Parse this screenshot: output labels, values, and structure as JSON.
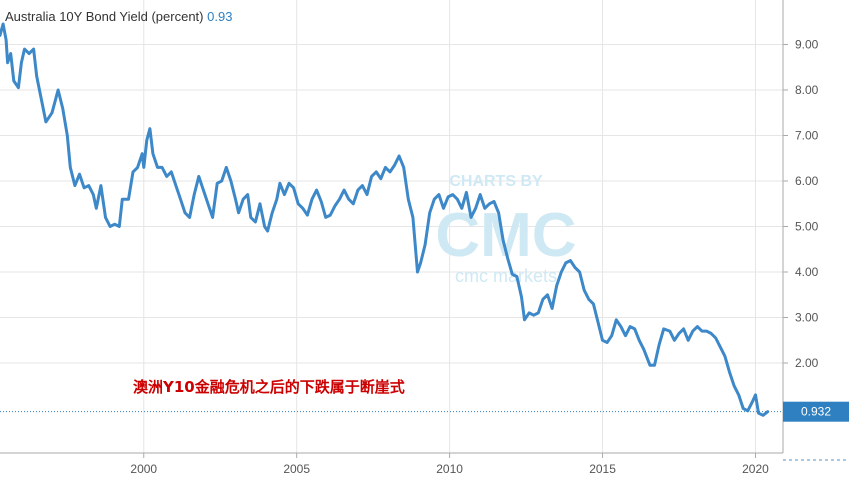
{
  "header": {
    "title": "Australia 10Y Bond Yield (percent)",
    "current_value": "0.93"
  },
  "annotation": "澳洲Y10金融危机之后的下跌属于断崖式",
  "watermark": {
    "top": "CHARTS BY",
    "logo": "CMC",
    "bottom": "cmc markets"
  },
  "last_value_badge": "0.932",
  "colors": {
    "line": "#3d88c8",
    "badge": "#2f80c0",
    "grid": "#e6e6e6",
    "axis": "#aaaaaa",
    "annotation": "#cc0000",
    "watermark": "#cfe9f4"
  },
  "chart_data": {
    "type": "line",
    "title": "Australia 10Y Bond Yield (percent)",
    "xlabel": "",
    "ylabel": "",
    "xlim": [
      1995.3,
      2020.9
    ],
    "ylim": [
      0,
      10
    ],
    "y_ticks": [
      2,
      3,
      4,
      5,
      6,
      7,
      8,
      9
    ],
    "y_tick_labels": [
      "2.00",
      "3.00",
      "4.00",
      "5.00",
      "6.00",
      "7.00",
      "8.00",
      "9.00"
    ],
    "x_ticks": [
      2000,
      2005,
      2010,
      2015,
      2020
    ],
    "x_tick_labels": [
      "2000",
      "2005",
      "2010",
      "2015",
      "2020"
    ],
    "grid": true,
    "legend": "none",
    "series": [
      {
        "values": [
          [
            1995.3,
            9.2
          ],
          [
            1995.4,
            9.45
          ],
          [
            1995.5,
            9.1
          ],
          [
            1995.55,
            8.6
          ],
          [
            1995.65,
            8.8
          ],
          [
            1995.75,
            8.2
          ],
          [
            1995.9,
            8.05
          ],
          [
            1996.0,
            8.6
          ],
          [
            1996.1,
            8.9
          ],
          [
            1996.25,
            8.8
          ],
          [
            1996.4,
            8.9
          ],
          [
            1996.5,
            8.3
          ],
          [
            1996.65,
            7.8
          ],
          [
            1996.8,
            7.3
          ],
          [
            1997.0,
            7.5
          ],
          [
            1997.2,
            8.0
          ],
          [
            1997.35,
            7.6
          ],
          [
            1997.5,
            7.0
          ],
          [
            1997.6,
            6.3
          ],
          [
            1997.75,
            5.9
          ],
          [
            1997.9,
            6.15
          ],
          [
            1998.05,
            5.85
          ],
          [
            1998.2,
            5.9
          ],
          [
            1998.35,
            5.7
          ],
          [
            1998.45,
            5.4
          ],
          [
            1998.6,
            5.9
          ],
          [
            1998.75,
            5.2
          ],
          [
            1998.9,
            5.0
          ],
          [
            1999.05,
            5.05
          ],
          [
            1999.2,
            5.0
          ],
          [
            1999.3,
            5.6
          ],
          [
            1999.5,
            5.6
          ],
          [
            1999.65,
            6.2
          ],
          [
            1999.8,
            6.3
          ],
          [
            1999.95,
            6.6
          ],
          [
            2000.0,
            6.3
          ],
          [
            2000.1,
            6.9
          ],
          [
            2000.2,
            7.15
          ],
          [
            2000.3,
            6.6
          ],
          [
            2000.45,
            6.3
          ],
          [
            2000.6,
            6.3
          ],
          [
            2000.75,
            6.1
          ],
          [
            2000.9,
            6.2
          ],
          [
            2001.05,
            5.9
          ],
          [
            2001.2,
            5.6
          ],
          [
            2001.35,
            5.3
          ],
          [
            2001.5,
            5.2
          ],
          [
            2001.65,
            5.7
          ],
          [
            2001.8,
            6.1
          ],
          [
            2001.95,
            5.8
          ],
          [
            2002.1,
            5.5
          ],
          [
            2002.25,
            5.2
          ],
          [
            2002.4,
            5.95
          ],
          [
            2002.55,
            6.0
          ],
          [
            2002.7,
            6.3
          ],
          [
            2002.85,
            6.0
          ],
          [
            2003.0,
            5.6
          ],
          [
            2003.1,
            5.3
          ],
          [
            2003.25,
            5.6
          ],
          [
            2003.4,
            5.7
          ],
          [
            2003.5,
            5.2
          ],
          [
            2003.65,
            5.1
          ],
          [
            2003.8,
            5.5
          ],
          [
            2003.95,
            5.0
          ],
          [
            2004.05,
            4.9
          ],
          [
            2004.2,
            5.3
          ],
          [
            2004.35,
            5.6
          ],
          [
            2004.45,
            5.95
          ],
          [
            2004.6,
            5.7
          ],
          [
            2004.75,
            5.95
          ],
          [
            2004.9,
            5.85
          ],
          [
            2005.05,
            5.5
          ],
          [
            2005.2,
            5.4
          ],
          [
            2005.35,
            5.25
          ],
          [
            2005.5,
            5.6
          ],
          [
            2005.65,
            5.8
          ],
          [
            2005.8,
            5.55
          ],
          [
            2005.95,
            5.2
          ],
          [
            2006.1,
            5.25
          ],
          [
            2006.25,
            5.45
          ],
          [
            2006.4,
            5.6
          ],
          [
            2006.55,
            5.8
          ],
          [
            2006.7,
            5.6
          ],
          [
            2006.85,
            5.5
          ],
          [
            2007.0,
            5.8
          ],
          [
            2007.15,
            5.9
          ],
          [
            2007.3,
            5.7
          ],
          [
            2007.45,
            6.1
          ],
          [
            2007.6,
            6.2
          ],
          [
            2007.75,
            6.05
          ],
          [
            2007.9,
            6.3
          ],
          [
            2008.05,
            6.2
          ],
          [
            2008.2,
            6.35
          ],
          [
            2008.35,
            6.55
          ],
          [
            2008.5,
            6.3
          ],
          [
            2008.65,
            5.6
          ],
          [
            2008.8,
            5.2
          ],
          [
            2008.95,
            4.0
          ],
          [
            2009.05,
            4.2
          ],
          [
            2009.2,
            4.6
          ],
          [
            2009.35,
            5.3
          ],
          [
            2009.5,
            5.6
          ],
          [
            2009.65,
            5.7
          ],
          [
            2009.8,
            5.4
          ],
          [
            2009.95,
            5.65
          ],
          [
            2010.1,
            5.7
          ],
          [
            2010.25,
            5.6
          ],
          [
            2010.4,
            5.4
          ],
          [
            2010.55,
            5.75
          ],
          [
            2010.7,
            5.2
          ],
          [
            2010.85,
            5.4
          ],
          [
            2011.0,
            5.7
          ],
          [
            2011.15,
            5.4
          ],
          [
            2011.3,
            5.5
          ],
          [
            2011.45,
            5.55
          ],
          [
            2011.6,
            5.3
          ],
          [
            2011.75,
            4.7
          ],
          [
            2011.9,
            4.3
          ],
          [
            2012.05,
            3.95
          ],
          [
            2012.2,
            3.9
          ],
          [
            2012.35,
            3.45
          ],
          [
            2012.45,
            2.95
          ],
          [
            2012.6,
            3.1
          ],
          [
            2012.75,
            3.05
          ],
          [
            2012.9,
            3.1
          ],
          [
            2013.05,
            3.4
          ],
          [
            2013.2,
            3.5
          ],
          [
            2013.35,
            3.2
          ],
          [
            2013.5,
            3.7
          ],
          [
            2013.65,
            4.0
          ],
          [
            2013.8,
            4.2
          ],
          [
            2013.95,
            4.25
          ],
          [
            2014.1,
            4.1
          ],
          [
            2014.25,
            4.0
          ],
          [
            2014.4,
            3.6
          ],
          [
            2014.55,
            3.4
          ],
          [
            2014.7,
            3.3
          ],
          [
            2014.85,
            2.9
          ],
          [
            2015.0,
            2.5
          ],
          [
            2015.15,
            2.45
          ],
          [
            2015.3,
            2.6
          ],
          [
            2015.45,
            2.95
          ],
          [
            2015.6,
            2.8
          ],
          [
            2015.75,
            2.6
          ],
          [
            2015.9,
            2.8
          ],
          [
            2016.05,
            2.75
          ],
          [
            2016.2,
            2.5
          ],
          [
            2016.35,
            2.3
          ],
          [
            2016.55,
            1.95
          ],
          [
            2016.7,
            1.95
          ],
          [
            2016.85,
            2.4
          ],
          [
            2017.0,
            2.75
          ],
          [
            2017.2,
            2.7
          ],
          [
            2017.35,
            2.5
          ],
          [
            2017.5,
            2.65
          ],
          [
            2017.65,
            2.75
          ],
          [
            2017.8,
            2.5
          ],
          [
            2017.95,
            2.7
          ],
          [
            2018.1,
            2.8
          ],
          [
            2018.25,
            2.7
          ],
          [
            2018.4,
            2.7
          ],
          [
            2018.55,
            2.65
          ],
          [
            2018.7,
            2.55
          ],
          [
            2018.85,
            2.35
          ],
          [
            2019.0,
            2.15
          ],
          [
            2019.15,
            1.8
          ],
          [
            2019.3,
            1.5
          ],
          [
            2019.45,
            1.3
          ],
          [
            2019.6,
            1.0
          ],
          [
            2019.75,
            0.95
          ],
          [
            2019.9,
            1.15
          ],
          [
            2020.0,
            1.3
          ],
          [
            2020.1,
            0.9
          ],
          [
            2020.25,
            0.85
          ],
          [
            2020.4,
            0.93
          ]
        ]
      }
    ]
  }
}
